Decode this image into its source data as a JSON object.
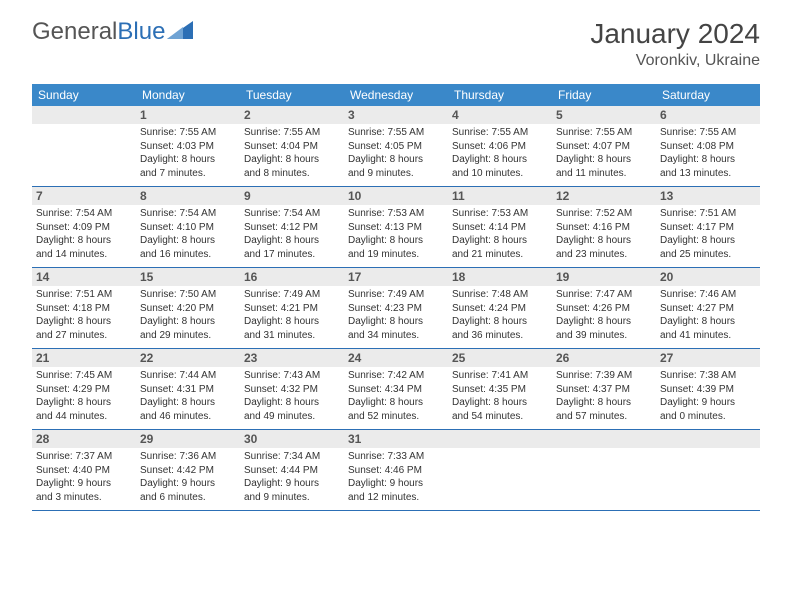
{
  "logo": {
    "text1": "General",
    "text2": "Blue"
  },
  "title": "January 2024",
  "location": "Voronkiv, Ukraine",
  "colors": {
    "header_bg": "#3a88c9",
    "border": "#2c6fb5",
    "daynum_bg": "#ebebeb",
    "text": "#333333",
    "title": "#444444"
  },
  "day_names": [
    "Sunday",
    "Monday",
    "Tuesday",
    "Wednesday",
    "Thursday",
    "Friday",
    "Saturday"
  ],
  "weeks": [
    [
      {
        "n": "",
        "lines": []
      },
      {
        "n": "1",
        "lines": [
          "Sunrise: 7:55 AM",
          "Sunset: 4:03 PM",
          "Daylight: 8 hours",
          "and 7 minutes."
        ]
      },
      {
        "n": "2",
        "lines": [
          "Sunrise: 7:55 AM",
          "Sunset: 4:04 PM",
          "Daylight: 8 hours",
          "and 8 minutes."
        ]
      },
      {
        "n": "3",
        "lines": [
          "Sunrise: 7:55 AM",
          "Sunset: 4:05 PM",
          "Daylight: 8 hours",
          "and 9 minutes."
        ]
      },
      {
        "n": "4",
        "lines": [
          "Sunrise: 7:55 AM",
          "Sunset: 4:06 PM",
          "Daylight: 8 hours",
          "and 10 minutes."
        ]
      },
      {
        "n": "5",
        "lines": [
          "Sunrise: 7:55 AM",
          "Sunset: 4:07 PM",
          "Daylight: 8 hours",
          "and 11 minutes."
        ]
      },
      {
        "n": "6",
        "lines": [
          "Sunrise: 7:55 AM",
          "Sunset: 4:08 PM",
          "Daylight: 8 hours",
          "and 13 minutes."
        ]
      }
    ],
    [
      {
        "n": "7",
        "lines": [
          "Sunrise: 7:54 AM",
          "Sunset: 4:09 PM",
          "Daylight: 8 hours",
          "and 14 minutes."
        ]
      },
      {
        "n": "8",
        "lines": [
          "Sunrise: 7:54 AM",
          "Sunset: 4:10 PM",
          "Daylight: 8 hours",
          "and 16 minutes."
        ]
      },
      {
        "n": "9",
        "lines": [
          "Sunrise: 7:54 AM",
          "Sunset: 4:12 PM",
          "Daylight: 8 hours",
          "and 17 minutes."
        ]
      },
      {
        "n": "10",
        "lines": [
          "Sunrise: 7:53 AM",
          "Sunset: 4:13 PM",
          "Daylight: 8 hours",
          "and 19 minutes."
        ]
      },
      {
        "n": "11",
        "lines": [
          "Sunrise: 7:53 AM",
          "Sunset: 4:14 PM",
          "Daylight: 8 hours",
          "and 21 minutes."
        ]
      },
      {
        "n": "12",
        "lines": [
          "Sunrise: 7:52 AM",
          "Sunset: 4:16 PM",
          "Daylight: 8 hours",
          "and 23 minutes."
        ]
      },
      {
        "n": "13",
        "lines": [
          "Sunrise: 7:51 AM",
          "Sunset: 4:17 PM",
          "Daylight: 8 hours",
          "and 25 minutes."
        ]
      }
    ],
    [
      {
        "n": "14",
        "lines": [
          "Sunrise: 7:51 AM",
          "Sunset: 4:18 PM",
          "Daylight: 8 hours",
          "and 27 minutes."
        ]
      },
      {
        "n": "15",
        "lines": [
          "Sunrise: 7:50 AM",
          "Sunset: 4:20 PM",
          "Daylight: 8 hours",
          "and 29 minutes."
        ]
      },
      {
        "n": "16",
        "lines": [
          "Sunrise: 7:49 AM",
          "Sunset: 4:21 PM",
          "Daylight: 8 hours",
          "and 31 minutes."
        ]
      },
      {
        "n": "17",
        "lines": [
          "Sunrise: 7:49 AM",
          "Sunset: 4:23 PM",
          "Daylight: 8 hours",
          "and 34 minutes."
        ]
      },
      {
        "n": "18",
        "lines": [
          "Sunrise: 7:48 AM",
          "Sunset: 4:24 PM",
          "Daylight: 8 hours",
          "and 36 minutes."
        ]
      },
      {
        "n": "19",
        "lines": [
          "Sunrise: 7:47 AM",
          "Sunset: 4:26 PM",
          "Daylight: 8 hours",
          "and 39 minutes."
        ]
      },
      {
        "n": "20",
        "lines": [
          "Sunrise: 7:46 AM",
          "Sunset: 4:27 PM",
          "Daylight: 8 hours",
          "and 41 minutes."
        ]
      }
    ],
    [
      {
        "n": "21",
        "lines": [
          "Sunrise: 7:45 AM",
          "Sunset: 4:29 PM",
          "Daylight: 8 hours",
          "and 44 minutes."
        ]
      },
      {
        "n": "22",
        "lines": [
          "Sunrise: 7:44 AM",
          "Sunset: 4:31 PM",
          "Daylight: 8 hours",
          "and 46 minutes."
        ]
      },
      {
        "n": "23",
        "lines": [
          "Sunrise: 7:43 AM",
          "Sunset: 4:32 PM",
          "Daylight: 8 hours",
          "and 49 minutes."
        ]
      },
      {
        "n": "24",
        "lines": [
          "Sunrise: 7:42 AM",
          "Sunset: 4:34 PM",
          "Daylight: 8 hours",
          "and 52 minutes."
        ]
      },
      {
        "n": "25",
        "lines": [
          "Sunrise: 7:41 AM",
          "Sunset: 4:35 PM",
          "Daylight: 8 hours",
          "and 54 minutes."
        ]
      },
      {
        "n": "26",
        "lines": [
          "Sunrise: 7:39 AM",
          "Sunset: 4:37 PM",
          "Daylight: 8 hours",
          "and 57 minutes."
        ]
      },
      {
        "n": "27",
        "lines": [
          "Sunrise: 7:38 AM",
          "Sunset: 4:39 PM",
          "Daylight: 9 hours",
          "and 0 minutes."
        ]
      }
    ],
    [
      {
        "n": "28",
        "lines": [
          "Sunrise: 7:37 AM",
          "Sunset: 4:40 PM",
          "Daylight: 9 hours",
          "and 3 minutes."
        ]
      },
      {
        "n": "29",
        "lines": [
          "Sunrise: 7:36 AM",
          "Sunset: 4:42 PM",
          "Daylight: 9 hours",
          "and 6 minutes."
        ]
      },
      {
        "n": "30",
        "lines": [
          "Sunrise: 7:34 AM",
          "Sunset: 4:44 PM",
          "Daylight: 9 hours",
          "and 9 minutes."
        ]
      },
      {
        "n": "31",
        "lines": [
          "Sunrise: 7:33 AM",
          "Sunset: 4:46 PM",
          "Daylight: 9 hours",
          "and 12 minutes."
        ]
      },
      {
        "n": "",
        "lines": []
      },
      {
        "n": "",
        "lines": []
      },
      {
        "n": "",
        "lines": []
      }
    ]
  ]
}
